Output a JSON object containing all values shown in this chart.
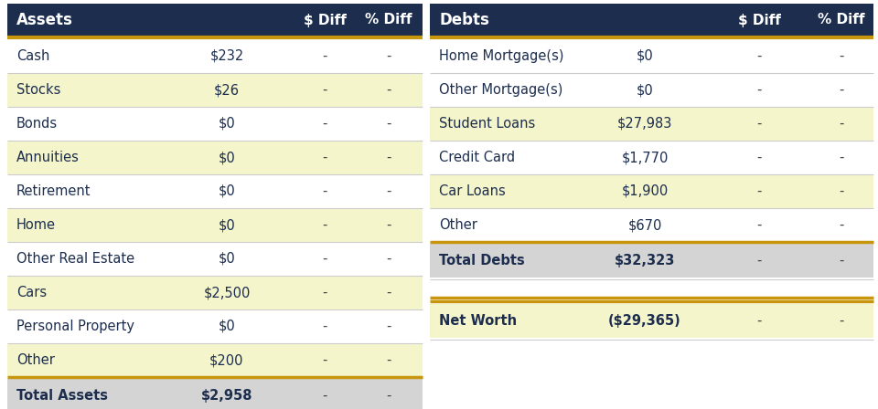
{
  "header_bg": "#1c2d4e",
  "header_fg": "#ffffff",
  "orange_line": "#c8960c",
  "row_alt1": "#ffffff",
  "row_alt2": "#f5f5cc",
  "total_row_bg": "#d4d4d4",
  "net_worth_bg": "#f5f5cc",
  "dash_color": "#444444",
  "text_color": "#1c2d4e",
  "sep_color": "#cccccc",
  "assets_header": "Assets",
  "debts_header": "Debts",
  "diff_header": "$ Diff",
  "pct_header": "% Diff",
  "assets": [
    {
      "label": "Cash",
      "value": "$232",
      "bg": "#ffffff"
    },
    {
      "label": "Stocks",
      "value": "$26",
      "bg": "#f5f5cc"
    },
    {
      "label": "Bonds",
      "value": "$0",
      "bg": "#ffffff"
    },
    {
      "label": "Annuities",
      "value": "$0",
      "bg": "#f5f5cc"
    },
    {
      "label": "Retirement",
      "value": "$0",
      "bg": "#ffffff"
    },
    {
      "label": "Home",
      "value": "$0",
      "bg": "#f5f5cc"
    },
    {
      "label": "Other Real Estate",
      "value": "$0",
      "bg": "#ffffff"
    },
    {
      "label": "Cars",
      "value": "$2,500",
      "bg": "#f5f5cc"
    },
    {
      "label": "Personal Property",
      "value": "$0",
      "bg": "#ffffff"
    },
    {
      "label": "Other",
      "value": "$200",
      "bg": "#f5f5cc"
    }
  ],
  "assets_total_label": "Total Assets",
  "assets_total_value": "$2,958",
  "debts": [
    {
      "label": "Home Mortgage(s)",
      "value": "$0",
      "bg": "#ffffff"
    },
    {
      "label": "Other Mortgage(s)",
      "value": "$0",
      "bg": "#ffffff"
    },
    {
      "label": "Student Loans",
      "value": "$27,983",
      "bg": "#f5f5cc"
    },
    {
      "label": "Credit Card",
      "value": "$1,770",
      "bg": "#ffffff"
    },
    {
      "label": "Car Loans",
      "value": "$1,900",
      "bg": "#f5f5cc"
    },
    {
      "label": "Other",
      "value": "$670",
      "bg": "#ffffff"
    }
  ],
  "debts_total_label": "Total Debts",
  "debts_total_value": "$32,323",
  "net_worth_label": "Net Worth",
  "net_worth_value": "($29,365)"
}
